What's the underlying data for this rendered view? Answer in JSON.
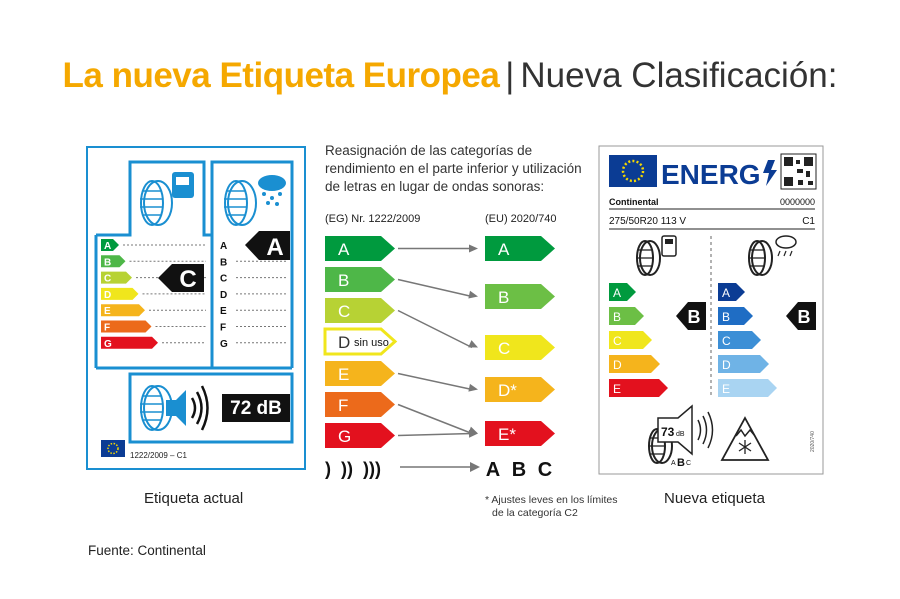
{
  "title": {
    "part1": "La nueva Etiqueta Europea",
    "separator": "|",
    "part2": "Nueva Clasificación:"
  },
  "description": [
    "Reasignación de las categorías de",
    "rendimiento en el parte inferior y utilización",
    "de letras en lugar de ondas sonoras:"
  ],
  "old_reg": "(EG) Nr. 1222/2009",
  "new_reg": "(EU) 2020/740",
  "old_classes": [
    "A",
    "B",
    "C",
    "D",
    "E",
    "F",
    "G"
  ],
  "old_classes_note": "sin uso",
  "new_classes": [
    "A",
    "B",
    "C",
    "D*",
    "E*"
  ],
  "noise_old": ")  ))  )))",
  "noise_new": [
    "A",
    "B",
    "C"
  ],
  "footnote": [
    "* Ajustes leves en los límites",
    "de la categoría C2"
  ],
  "old_label": {
    "caption": "Etiqueta actual",
    "fuel_classes": [
      "A",
      "B",
      "C",
      "D",
      "E",
      "F",
      "G"
    ],
    "fuel_rating": "C",
    "wet_classes": [
      "A",
      "B",
      "C",
      "D",
      "E",
      "F",
      "G"
    ],
    "wet_rating": "A",
    "noise": "72 dB",
    "reg": "1222/2009 – C1"
  },
  "new_label": {
    "caption": "Nueva etiqueta",
    "energy": "ENERG",
    "brand": "Continental",
    "code": "0000000",
    "tyre_size": "275/50R20 113 V",
    "tyre_class": "C1",
    "fuel_classes": [
      "A",
      "B",
      "C",
      "D",
      "E"
    ],
    "fuel_rating": "B",
    "wet_classes": [
      "A",
      "B",
      "C",
      "D",
      "E"
    ],
    "wet_rating": "B",
    "noise_value": "73",
    "noise_unit": "dB",
    "noise_classes": [
      "A",
      "B",
      "C"
    ],
    "side_code": "2020/740"
  },
  "source": "Fuente: Continental",
  "colors": {
    "orange": "#f5a800",
    "blue": "#1a8fd1",
    "eu_blue": "#0b3c94",
    "old_scale": [
      "#009a3e",
      "#4eb748",
      "#b7d234",
      "#f0e61c",
      "#f5b41c",
      "#ec6a1b",
      "#e3111e"
    ],
    "new_scale": [
      "#009a3e",
      "#6cbf45",
      "#f0e61c",
      "#f5b41c",
      "#e3111e"
    ]
  }
}
